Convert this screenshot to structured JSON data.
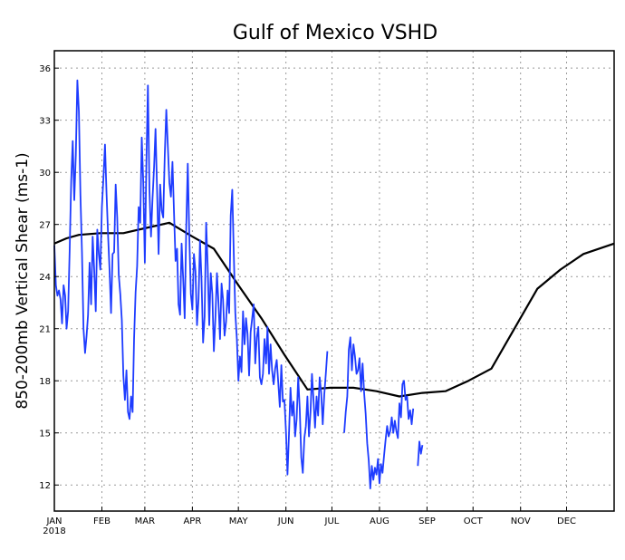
{
  "chart_data": {
    "type": "line",
    "title": "Gulf of Mexico VSHD",
    "xlabel": "",
    "ylabel": "850-200mb Vertical Shear (ms-1)",
    "year_label": "2018",
    "xlim": [
      0,
      365
    ],
    "ylim": [
      10.5,
      37
    ],
    "x_ticks": [
      {
        "label": "JAN",
        "day": 0
      },
      {
        "label": "FEB",
        "day": 31
      },
      {
        "label": "MAR",
        "day": 59
      },
      {
        "label": "APR",
        "day": 90
      },
      {
        "label": "MAY",
        "day": 120
      },
      {
        "label": "JUN",
        "day": 151
      },
      {
        "label": "JUL",
        "day": 181
      },
      {
        "label": "AUG",
        "day": 212
      },
      {
        "label": "SEP",
        "day": 243
      },
      {
        "label": "OCT",
        "day": 273
      },
      {
        "label": "NOV",
        "day": 304
      },
      {
        "label": "DEC",
        "day": 334
      }
    ],
    "y_ticks": [
      12,
      15,
      18,
      21,
      24,
      27,
      30,
      33,
      36
    ],
    "grid": true,
    "legend": "none",
    "series": [
      {
        "role": "climatology",
        "color": "#000000",
        "points": [
          [
            0,
            25.9
          ],
          [
            8,
            26.2
          ],
          [
            16,
            26.4
          ],
          [
            30,
            26.5
          ],
          [
            45,
            26.5
          ],
          [
            60,
            26.8
          ],
          [
            75,
            27.1
          ],
          [
            90,
            26.3
          ],
          [
            104,
            25.6
          ],
          [
            120,
            23.5
          ],
          [
            135,
            21.6
          ],
          [
            150,
            19.5
          ],
          [
            165,
            17.5
          ],
          [
            180,
            17.6
          ],
          [
            195,
            17.6
          ],
          [
            210,
            17.4
          ],
          [
            225,
            17.1
          ],
          [
            240,
            17.3
          ],
          [
            255,
            17.4
          ],
          [
            270,
            18.0
          ],
          [
            285,
            18.7
          ],
          [
            300,
            21.0
          ],
          [
            315,
            23.3
          ],
          [
            330,
            24.4
          ],
          [
            345,
            25.3
          ],
          [
            365,
            25.9
          ]
        ]
      },
      {
        "role": "observed_2018",
        "color": "#1e3cff",
        "points": [
          [
            0,
            25.8
          ],
          [
            1,
            23.5
          ],
          [
            2,
            22.9
          ],
          [
            3,
            23.2
          ],
          [
            4,
            22.7
          ],
          [
            5,
            21.3
          ],
          [
            6,
            23.5
          ],
          [
            7,
            22.9
          ],
          [
            8,
            21.0
          ],
          [
            9,
            22.0
          ],
          [
            10,
            25.5
          ],
          [
            11,
            29.5
          ],
          [
            12,
            31.8
          ],
          [
            13,
            28.4
          ],
          [
            14,
            31.0
          ],
          [
            15,
            35.3
          ],
          [
            16,
            33.5
          ],
          [
            17,
            28.7
          ],
          [
            18,
            25.4
          ],
          [
            19,
            21.0
          ],
          [
            20,
            19.6
          ],
          [
            21,
            20.6
          ],
          [
            22,
            21.8
          ],
          [
            23,
            24.8
          ],
          [
            24,
            22.4
          ],
          [
            25,
            26.3
          ],
          [
            26,
            24.4
          ],
          [
            27,
            22.0
          ],
          [
            28,
            26.7
          ],
          [
            29,
            25.3
          ],
          [
            30,
            24.4
          ],
          [
            31,
            28.0
          ],
          [
            32,
            29.7
          ],
          [
            33,
            31.6
          ],
          [
            34,
            28.8
          ],
          [
            35,
            26.4
          ],
          [
            36,
            24.3
          ],
          [
            37,
            21.9
          ],
          [
            38,
            25.3
          ],
          [
            39,
            25.4
          ],
          [
            40,
            29.3
          ],
          [
            41,
            27.4
          ],
          [
            42,
            24.1
          ],
          [
            43,
            23.0
          ],
          [
            44,
            21.5
          ],
          [
            45,
            18.3
          ],
          [
            46,
            16.9
          ],
          [
            47,
            18.6
          ],
          [
            48,
            16.2
          ],
          [
            49,
            15.8
          ],
          [
            50,
            17.1
          ],
          [
            51,
            16.2
          ],
          [
            52,
            20.4
          ],
          [
            53,
            23.1
          ],
          [
            54,
            24.6
          ],
          [
            55,
            28.0
          ],
          [
            56,
            27.1
          ],
          [
            57,
            32.0
          ],
          [
            58,
            29.4
          ],
          [
            59,
            24.8
          ],
          [
            60,
            30.5
          ],
          [
            61,
            35.0
          ],
          [
            62,
            29.0
          ],
          [
            63,
            26.3
          ],
          [
            64,
            28.5
          ],
          [
            65,
            30.3
          ],
          [
            66,
            32.5
          ],
          [
            67,
            29.0
          ],
          [
            68,
            25.3
          ],
          [
            69,
            29.3
          ],
          [
            70,
            27.8
          ],
          [
            71,
            27.4
          ],
          [
            72,
            31.0
          ],
          [
            73,
            33.6
          ],
          [
            74,
            31.5
          ],
          [
            75,
            29.4
          ],
          [
            76,
            28.6
          ],
          [
            77,
            30.6
          ],
          [
            78,
            27.7
          ],
          [
            79,
            24.9
          ],
          [
            80,
            25.6
          ],
          [
            81,
            22.4
          ],
          [
            82,
            21.8
          ],
          [
            83,
            25.9
          ],
          [
            84,
            23.9
          ],
          [
            85,
            21.6
          ],
          [
            86,
            26.8
          ],
          [
            87,
            30.5
          ],
          [
            88,
            26.3
          ],
          [
            89,
            23.0
          ],
          [
            90,
            22.1
          ],
          [
            91,
            25.3
          ],
          [
            92,
            24.3
          ],
          [
            93,
            21.2
          ],
          [
            94,
            22.7
          ],
          [
            95,
            26.1
          ],
          [
            96,
            23.8
          ],
          [
            97,
            20.2
          ],
          [
            98,
            21.7
          ],
          [
            99,
            27.1
          ],
          [
            100,
            24.6
          ],
          [
            101,
            21.2
          ],
          [
            102,
            24.2
          ],
          [
            103,
            23.0
          ],
          [
            104,
            19.7
          ],
          [
            105,
            21.6
          ],
          [
            106,
            24.2
          ],
          [
            107,
            22.5
          ],
          [
            108,
            20.4
          ],
          [
            109,
            23.6
          ],
          [
            110,
            22.7
          ],
          [
            111,
            20.6
          ],
          [
            112,
            21.4
          ],
          [
            113,
            23.2
          ],
          [
            114,
            21.9
          ],
          [
            115,
            27.5
          ],
          [
            116,
            29.0
          ],
          [
            117,
            25.3
          ],
          [
            118,
            21.9
          ],
          [
            119,
            20.4
          ],
          [
            120,
            18.0
          ],
          [
            121,
            19.4
          ],
          [
            122,
            18.5
          ],
          [
            123,
            22.0
          ],
          [
            124,
            20.1
          ],
          [
            125,
            21.6
          ],
          [
            126,
            20.7
          ],
          [
            127,
            18.3
          ],
          [
            128,
            20.8
          ],
          [
            129,
            21.6
          ],
          [
            130,
            22.4
          ],
          [
            131,
            19.0
          ],
          [
            132,
            20.5
          ],
          [
            133,
            21.1
          ],
          [
            134,
            18.2
          ],
          [
            135,
            17.8
          ],
          [
            136,
            18.4
          ],
          [
            137,
            20.4
          ],
          [
            138,
            19.0
          ],
          [
            139,
            21.1
          ],
          [
            140,
            18.4
          ],
          [
            141,
            20.1
          ],
          [
            142,
            18.6
          ],
          [
            143,
            17.8
          ],
          [
            144,
            18.7
          ],
          [
            145,
            19.2
          ],
          [
            146,
            17.9
          ],
          [
            147,
            16.5
          ],
          [
            148,
            18.9
          ],
          [
            149,
            16.8
          ],
          [
            150,
            16.9
          ],
          [
            151,
            15.1
          ],
          [
            152,
            12.6
          ],
          [
            153,
            15.0
          ],
          [
            154,
            17.6
          ],
          [
            155,
            16.0
          ],
          [
            156,
            16.8
          ],
          [
            157,
            14.8
          ],
          [
            158,
            15.8
          ],
          [
            159,
            18.2
          ],
          [
            160,
            16.4
          ],
          [
            161,
            13.6
          ],
          [
            162,
            12.7
          ],
          [
            163,
            14.7
          ],
          [
            164,
            15.4
          ],
          [
            165,
            17.1
          ],
          [
            166,
            14.8
          ],
          [
            167,
            16.2
          ],
          [
            168,
            18.4
          ],
          [
            169,
            16.9
          ],
          [
            170,
            15.3
          ],
          [
            171,
            17.1
          ],
          [
            172,
            16.0
          ],
          [
            173,
            18.2
          ],
          [
            174,
            17.3
          ],
          [
            175,
            15.5
          ],
          [
            176,
            17.2
          ],
          [
            177,
            18.4
          ],
          [
            178,
            19.7
          ]
        ]
      },
      {
        "role": "observed_2018",
        "color": "#1e3cff",
        "points": [
          [
            189,
            15.0
          ],
          [
            190,
            16.2
          ],
          [
            191,
            17.1
          ],
          [
            192,
            19.8
          ],
          [
            193,
            20.5
          ],
          [
            194,
            18.6
          ],
          [
            195,
            20.1
          ],
          [
            196,
            19.4
          ],
          [
            197,
            18.4
          ],
          [
            198,
            18.6
          ],
          [
            199,
            19.3
          ],
          [
            200,
            17.4
          ],
          [
            201,
            19.0
          ],
          [
            202,
            17.3
          ],
          [
            203,
            16.1
          ],
          [
            204,
            14.4
          ],
          [
            205,
            13.4
          ],
          [
            206,
            11.8
          ],
          [
            207,
            13.1
          ],
          [
            208,
            12.3
          ],
          [
            209,
            13.0
          ],
          [
            210,
            12.6
          ],
          [
            211,
            13.5
          ],
          [
            212,
            12.1
          ],
          [
            213,
            13.2
          ],
          [
            214,
            12.7
          ],
          [
            215,
            13.7
          ],
          [
            216,
            14.6
          ],
          [
            217,
            15.4
          ],
          [
            218,
            14.8
          ],
          [
            219,
            15.1
          ],
          [
            220,
            15.9
          ],
          [
            221,
            15.0
          ],
          [
            222,
            15.7
          ],
          [
            223,
            15.1
          ],
          [
            224,
            14.7
          ],
          [
            225,
            16.7
          ],
          [
            226,
            15.9
          ],
          [
            227,
            17.8
          ],
          [
            228,
            18.0
          ],
          [
            229,
            16.9
          ],
          [
            230,
            17.1
          ],
          [
            231,
            15.8
          ],
          [
            232,
            16.3
          ],
          [
            233,
            15.5
          ],
          [
            234,
            16.4
          ]
        ]
      },
      {
        "role": "observed_2018",
        "color": "#1e3cff",
        "points": [
          [
            237,
            13.1
          ],
          [
            238,
            14.5
          ],
          [
            239,
            13.8
          ],
          [
            240,
            14.3
          ]
        ]
      }
    ]
  }
}
